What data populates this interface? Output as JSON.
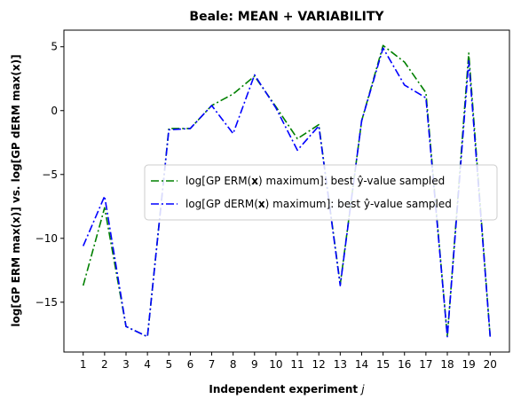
{
  "chart_data": {
    "type": "line",
    "title": "Beale: MEAN + VARIABILITY",
    "xlabel": "Independent experiment j",
    "ylabel": "log[GP ERM max(x)] vs. log[GP dERM max(x)]",
    "x": [
      1,
      2,
      3,
      4,
      5,
      6,
      7,
      8,
      9,
      10,
      11,
      12,
      13,
      14,
      15,
      16,
      17,
      18,
      19,
      20
    ],
    "xlim": [
      0.1,
      20.9
    ],
    "ylim": [
      -18.9,
      6.3
    ],
    "yticks": [
      5,
      0,
      -5,
      -10,
      -15
    ],
    "ytick_labels": [
      "5",
      "0",
      "−5",
      "−10",
      "−15"
    ],
    "grid": false,
    "legend_position": "center-right",
    "series": [
      {
        "name": "log[GP ERM(x) maximum]: best ŷ-value sampled",
        "color": "#008000",
        "linestyle": "dash-dot",
        "values": [
          -13.7,
          -7.6,
          -16.9,
          -17.7,
          -1.4,
          -1.4,
          0.4,
          1.3,
          2.7,
          0.3,
          -2.2,
          -1.1,
          -13.6,
          -0.8,
          5.1,
          3.8,
          1.4,
          -17.7,
          4.5,
          -17.7
        ]
      },
      {
        "name": "log[GP dERM(x) maximum]: best ŷ-value sampled",
        "color": "#0000ff",
        "linestyle": "dash-dot",
        "values": [
          -10.6,
          -6.7,
          -16.9,
          -17.7,
          -1.5,
          -1.4,
          0.4,
          -1.8,
          2.8,
          0.2,
          -3.1,
          -1.2,
          -13.7,
          -0.8,
          4.9,
          2.0,
          1.0,
          -17.7,
          3.9,
          -17.7
        ]
      }
    ]
  }
}
